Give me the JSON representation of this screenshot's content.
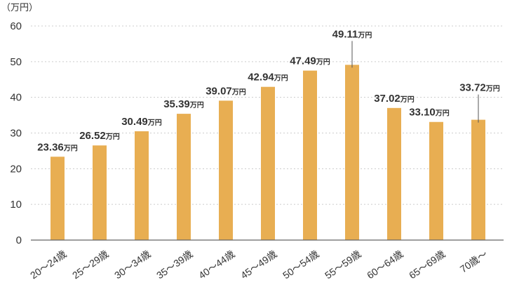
{
  "chart_data": {
    "type": "bar",
    "y_unit_label": "（万円）",
    "ylim": [
      0,
      60
    ],
    "yticks": [
      "0",
      "10",
      "20",
      "30",
      "40",
      "50",
      "60"
    ],
    "grid": true,
    "bar_color": "#E8AE52",
    "categories": [
      "20～24歳",
      "25～29歳",
      "30～34歳",
      "35～39歳",
      "40～44歳",
      "45～49歳",
      "50～54歳",
      "55～59歳",
      "60～64歳",
      "65～69歳",
      "70歳～"
    ],
    "values": [
      23.36,
      26.52,
      30.49,
      35.39,
      39.07,
      42.94,
      47.49,
      49.11,
      37.02,
      33.1,
      33.72
    ],
    "value_labels": [
      "23.36",
      "26.52",
      "30.49",
      "35.39",
      "39.07",
      "42.94",
      "47.49",
      "49.11",
      "37.02",
      "33.10",
      "33.72"
    ],
    "value_unit": "万円"
  }
}
